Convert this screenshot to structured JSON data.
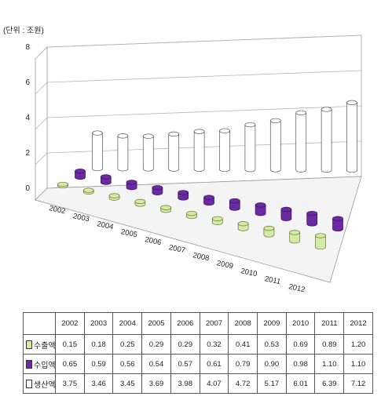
{
  "unit_label": "(단위 : 조원)",
  "chart_data": {
    "type": "bar",
    "variant": "3d-cylinder",
    "categories": [
      "2002",
      "2003",
      "2004",
      "2005",
      "2006",
      "2007",
      "2008",
      "2009",
      "2010",
      "2011",
      "2012"
    ],
    "series": [
      {
        "name": "수출액",
        "color": "#d4eaa6",
        "values": [
          0.15,
          0.18,
          0.25,
          0.29,
          0.29,
          0.32,
          0.41,
          0.53,
          0.69,
          0.89,
          1.2
        ]
      },
      {
        "name": "수입액",
        "color": "#6a2aa0",
        "values": [
          0.65,
          0.59,
          0.56,
          0.54,
          0.57,
          0.61,
          0.79,
          0.9,
          0.98,
          1.1,
          1.1
        ]
      },
      {
        "name": "생산액",
        "color": "#ffffff",
        "values": [
          3.75,
          3.46,
          3.45,
          3.69,
          3.98,
          4.07,
          4.72,
          5.17,
          6.01,
          6.39,
          7.12
        ]
      }
    ],
    "yticks": [
      "0",
      "2",
      "4",
      "6",
      "8"
    ],
    "ylim": [
      0,
      8
    ],
    "grid": true,
    "legend": "data-table"
  }
}
